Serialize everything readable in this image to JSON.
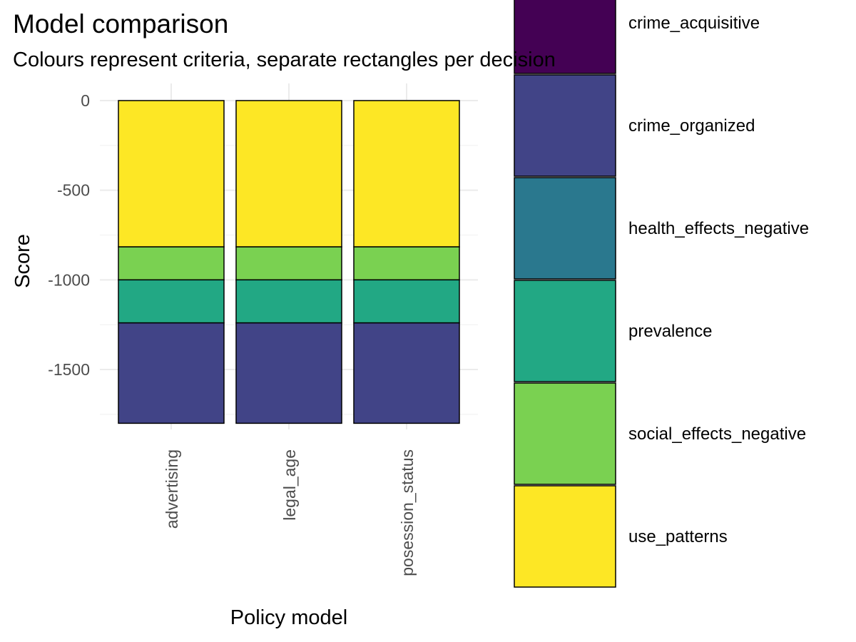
{
  "chart_data": {
    "type": "bar",
    "stacked": true,
    "title": "Model comparison",
    "subtitle": "Colours represent criteria, separate rectangles per decision",
    "xlabel": "Policy model",
    "ylabel": "Score",
    "categories": [
      "advertising",
      "legal_age",
      "posession_status"
    ],
    "ylim": [
      -1800,
      0
    ],
    "yticks": [
      0,
      -500,
      -1000,
      -1500
    ],
    "grid": true,
    "legend_position": "right",
    "series": [
      {
        "name": "use_patterns",
        "color": "#FDE725",
        "values": [
          -816,
          -816,
          -816
        ]
      },
      {
        "name": "social_effects_negative",
        "color": "#7AD151",
        "values": [
          -184,
          -184,
          -184
        ]
      },
      {
        "name": "prevalence",
        "color": "#22A884",
        "values": [
          -240,
          -240,
          -240
        ]
      },
      {
        "name": "health_effects_negative",
        "color": "#2A788E",
        "values": [
          0,
          0,
          0
        ]
      },
      {
        "name": "crime_organized",
        "color": "#414487",
        "values": [
          -560,
          -560,
          -560
        ]
      },
      {
        "name": "crime_acquisitive",
        "color": "#440154",
        "values": [
          0,
          0,
          0
        ]
      }
    ],
    "legend": [
      {
        "label": "crime_acquisitive",
        "color": "#440154"
      },
      {
        "label": "crime_organized",
        "color": "#414487"
      },
      {
        "label": "health_effects_negative",
        "color": "#2A788E"
      },
      {
        "label": "prevalence",
        "color": "#22A884"
      },
      {
        "label": "social_effects_negative",
        "color": "#7AD151"
      },
      {
        "label": "use_patterns",
        "color": "#FDE725"
      }
    ]
  }
}
